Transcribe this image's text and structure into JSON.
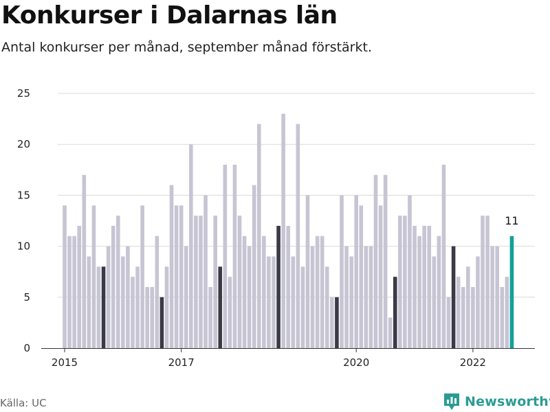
{
  "header": {
    "title": "Konkurser i Dalarnas län",
    "subtitle": "Antal konkurser per månad, september månad förstärkt."
  },
  "footer": {
    "source": "Källa: UC",
    "brand": "Newsworthy",
    "brand_icon": "newsworthy-logo-icon"
  },
  "colors": {
    "normal": "#c7c5d3",
    "highlight": "#3b3a47",
    "latest": "#14a098",
    "grid": "#d9d9d9",
    "axis": "#333333",
    "brand": "#2a9c93"
  },
  "chart_data": {
    "type": "bar",
    "title": "Konkurser i Dalarnas län",
    "subtitle": "Antal konkurser per månad, september månad förstärkt.",
    "xlabel": "",
    "ylabel": "",
    "ylim": [
      0,
      25
    ],
    "yticks": [
      0,
      5,
      10,
      15,
      20,
      25
    ],
    "grid": true,
    "start": "2015-01",
    "highlight_month": "September",
    "x_tick_labels": [
      {
        "label": "2015",
        "index": 0
      },
      {
        "label": "2017",
        "index": 24
      },
      {
        "label": "2020",
        "index": 60
      },
      {
        "label": "2022",
        "index": 84
      }
    ],
    "values": [
      14,
      11,
      11,
      12,
      17,
      9,
      14,
      8,
      8,
      10,
      12,
      13,
      9,
      10,
      7,
      8,
      14,
      6,
      6,
      11,
      5,
      8,
      16,
      14,
      14,
      10,
      20,
      13,
      13,
      15,
      6,
      13,
      8,
      18,
      7,
      18,
      13,
      11,
      10,
      16,
      22,
      11,
      9,
      9,
      12,
      23,
      12,
      9,
      22,
      8,
      15,
      10,
      11,
      11,
      8,
      5,
      5,
      15,
      10,
      9,
      15,
      14,
      10,
      10,
      17,
      14,
      17,
      3,
      7,
      13,
      13,
      15,
      12,
      11,
      12,
      12,
      9,
      11,
      18,
      5,
      10,
      7,
      6,
      8,
      6,
      9,
      13,
      13,
      10,
      10,
      6,
      7,
      11
    ],
    "highlighted_indices": [
      8,
      20,
      32,
      44,
      56,
      68,
      80
    ],
    "latest_label": "11"
  }
}
